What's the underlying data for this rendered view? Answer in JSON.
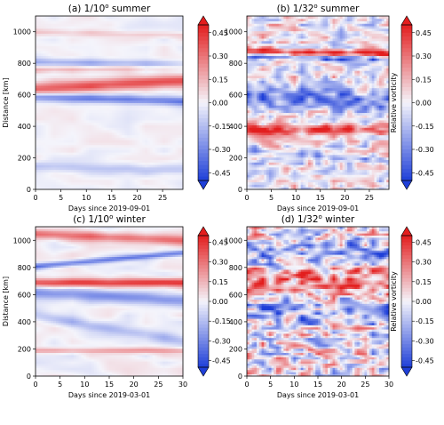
{
  "figure": {
    "colormap": "bwr",
    "colors": {
      "negative": "#1f3fd8",
      "zero": "#f4f4fb",
      "positive": "#e31e1e"
    }
  },
  "chart_data": [
    {
      "type": "heatmap",
      "title_main": "(a) 1/10",
      "title_sup": "o",
      "title_tail": " summer",
      "xlabel": "Days since 2019-09-01",
      "ylabel": "Distance [km]",
      "xlim": [
        0,
        29
      ],
      "ylim": [
        0,
        1100
      ],
      "xticks": [
        0,
        5,
        10,
        15,
        20,
        25
      ],
      "yticks": [
        0,
        200,
        400,
        600,
        800,
        1000
      ],
      "resolution": "1/10",
      "season": "summer",
      "bands": [
        {
          "y0": 590,
          "y1": 560,
          "value": -0.33,
          "width": 28
        },
        {
          "y0": 640,
          "y1": 690,
          "value": 0.36,
          "width": 38
        },
        {
          "y0": 810,
          "y1": 790,
          "value": -0.2,
          "width": 25
        },
        {
          "y0": 760,
          "y1": 780,
          "value": 0.15,
          "width": 20
        },
        {
          "y0": 150,
          "y1": 120,
          "value": -0.12,
          "width": 30
        },
        {
          "y0": 1000,
          "y1": 980,
          "value": 0.1,
          "width": 20
        }
      ],
      "noise": 0.05
    },
    {
      "type": "heatmap",
      "title_main": "(b) 1/32",
      "title_sup": "o",
      "title_tail": " summer",
      "xlabel": "Days since 2019-09-01",
      "ylabel": "",
      "cbar_label": "Relative vorticity",
      "xlim": [
        0,
        29
      ],
      "ylim": [
        0,
        1100
      ],
      "xticks": [
        0,
        5,
        10,
        15,
        20,
        25
      ],
      "yticks": [
        0,
        200,
        400,
        600,
        800,
        1000
      ],
      "resolution": "1/32",
      "season": "summer",
      "bands": [
        {
          "y0": 880,
          "y1": 860,
          "value": 0.42,
          "width": 22
        },
        {
          "y0": 840,
          "y1": 830,
          "value": -0.35,
          "width": 18
        },
        {
          "y0": 380,
          "y1": 380,
          "value": 0.4,
          "width": 30
        },
        {
          "y0": 600,
          "y1": 560,
          "value": -0.35,
          "width": 60
        },
        {
          "y0": 250,
          "y1": 180,
          "value": -0.2,
          "width": 20
        }
      ],
      "noise": 0.28
    },
    {
      "type": "heatmap",
      "title_main": "(c) 1/10",
      "title_sup": "o",
      "title_tail": " winter",
      "xlabel": "Days since 2019-03-01",
      "ylabel": "Distance [km]",
      "xlim": [
        0,
        30
      ],
      "ylim": [
        0,
        1100
      ],
      "xticks": [
        0,
        5,
        10,
        15,
        20,
        25,
        30
      ],
      "yticks": [
        0,
        200,
        400,
        600,
        800,
        1000
      ],
      "resolution": "1/10",
      "season": "winter",
      "bands": [
        {
          "y0": 810,
          "y1": 910,
          "value": -0.35,
          "width": 22
        },
        {
          "y0": 690,
          "y1": 690,
          "value": 0.42,
          "width": 30
        },
        {
          "y0": 620,
          "y1": 560,
          "value": -0.25,
          "width": 45
        },
        {
          "y0": 1050,
          "y1": 1000,
          "value": 0.3,
          "width": 35
        },
        {
          "y0": 190,
          "y1": 190,
          "value": 0.2,
          "width": 20
        },
        {
          "y0": 450,
          "y1": 260,
          "value": -0.15,
          "width": 40
        }
      ],
      "noise": 0.06
    },
    {
      "type": "heatmap",
      "title_main": "(d) 1/32",
      "title_sup": "o",
      "title_tail": " winter",
      "xlabel": "Days since 2019-03-01",
      "ylabel": "",
      "cbar_label": "Relative vorticity",
      "xlim": [
        0,
        30
      ],
      "ylim": [
        0,
        1100
      ],
      "xticks": [
        0,
        5,
        10,
        15,
        20,
        25,
        30
      ],
      "yticks": [
        0,
        200,
        400,
        600,
        800,
        1000
      ],
      "resolution": "1/32",
      "season": "winter",
      "bands": [
        {
          "y0": 700,
          "y1": 700,
          "value": 0.3,
          "width": 120
        },
        {
          "y0": 900,
          "y1": 900,
          "value": -0.2,
          "width": 100
        },
        {
          "y0": 480,
          "y1": 480,
          "value": -0.25,
          "width": 80
        }
      ],
      "noise": 0.42
    }
  ],
  "colorbar": {
    "label": "Relative vorticity",
    "ticks": [
      "0.45",
      "0.30",
      "0.15",
      "0.00",
      "-0.15",
      "-0.30",
      "-0.45"
    ],
    "range": [
      -0.5,
      0.5
    ]
  }
}
